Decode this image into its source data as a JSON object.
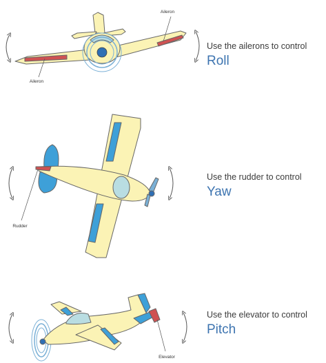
{
  "colors": {
    "airframe": "#fbf3b5",
    "outline": "#666666",
    "control_surface_red": "#cf5252",
    "control_surface_blue": "#3ea0d8",
    "cockpit": "#b9dde2",
    "spinner": "#2f6fb4",
    "accent_text": "#3d74b0"
  },
  "sections": [
    {
      "id": "roll",
      "caption": "Use the ailerons to control",
      "axis": "Roll",
      "labels": [
        "Aileron",
        "Aileron"
      ]
    },
    {
      "id": "yaw",
      "caption": "Use the rudder to control",
      "axis": "Yaw",
      "labels": [
        "Rudder"
      ]
    },
    {
      "id": "pitch",
      "caption": "Use the elevator to control",
      "axis": "Pitch",
      "labels": [
        "Elevator"
      ]
    }
  ]
}
